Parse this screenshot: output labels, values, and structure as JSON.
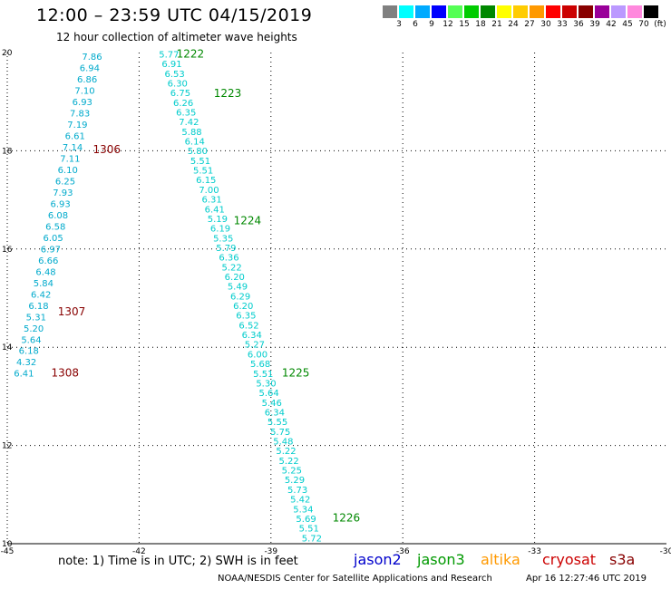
{
  "title": "12:00 – 23:59 UTC 04/15/2019",
  "subtitle": "12 hour collection of altimeter wave heights",
  "colorbar": {
    "labels": [
      "3",
      "6",
      "9",
      "12",
      "15",
      "18",
      "21",
      "24",
      "27",
      "30",
      "33",
      "36",
      "39",
      "42",
      "45",
      "70",
      "(ft)"
    ],
    "colors": [
      "#808080",
      "#00ffff",
      "#00aaff",
      "#0000ff",
      "#55ff55",
      "#00cc00",
      "#008800",
      "#ffff00",
      "#ffcc00",
      "#ff9900",
      "#ff0000",
      "#cc0000",
      "#880000",
      "#990099",
      "#bb99ff",
      "#ff88dd",
      "#000000"
    ]
  },
  "axes": {
    "x_ticks": [
      "-45",
      "-42",
      "-39",
      "-36",
      "-33",
      "-30"
    ],
    "y_ticks": [
      "20",
      "18",
      "16",
      "14",
      "12",
      "10"
    ],
    "lon_range": [
      -45,
      -30
    ],
    "lat_range": [
      10,
      20
    ]
  },
  "passes": [
    {
      "label": "1222",
      "color": "#008800",
      "lon": -41.15,
      "lat": 19.9
    },
    {
      "label": "1223",
      "color": "#008800",
      "lon": -40.3,
      "lat": 19.1
    },
    {
      "label": "1224",
      "color": "#008800",
      "lon": -39.85,
      "lat": 16.5
    },
    {
      "label": "1225",
      "color": "#008800",
      "lon": -38.75,
      "lat": 13.4
    },
    {
      "label": "1226",
      "color": "#008800",
      "lon": -37.6,
      "lat": 10.45
    },
    {
      "label": "1306",
      "color": "#880000",
      "lon": -43.05,
      "lat": 17.95
    },
    {
      "label": "1307",
      "color": "#880000",
      "lon": -43.85,
      "lat": 14.65
    },
    {
      "label": "1308",
      "color": "#880000",
      "lon": -44.0,
      "lat": 13.4
    }
  ],
  "tracks": [
    {
      "name": "track-west",
      "color": "#00aacc",
      "start_lon": -43.3,
      "start_lat": 19.85,
      "end_lon": -44.85,
      "end_lat": 13.4,
      "values": [
        "7.86",
        "6.94",
        "6.86",
        "7.10",
        "6.93",
        "7.83",
        "7.19",
        "6.61",
        "7.14",
        "7.11",
        "6.10",
        "6.25",
        "7.93",
        "6.93",
        "6.08",
        "6.58",
        "6.05",
        "6.97",
        "6.66",
        "6.48",
        "5.84",
        "6.42",
        "6.18",
        "5.31",
        "5.20",
        "5.64",
        "6.18",
        "4.32",
        "6.41"
      ]
    },
    {
      "name": "track-east",
      "color": "#00cccc",
      "start_lon": -41.55,
      "start_lat": 19.9,
      "end_lon": -38.3,
      "end_lat": 10.05,
      "values": [
        "5.77",
        "6.91",
        "6.53",
        "6.30",
        "6.75",
        "6.26",
        "6.35",
        "7.42",
        "5.88",
        "6.14",
        "5.80",
        "5.51",
        "5.51",
        "6.15",
        "7.00",
        "6.31",
        "6.41",
        "5.19",
        "6.19",
        "5.35",
        "5.79",
        "6.36",
        "5.22",
        "6.20",
        "5.49",
        "6.29",
        "6.20",
        "6.35",
        "6.52",
        "6.34",
        "5.27",
        "6.00",
        "5.68",
        "5.51",
        "5.30",
        "5.64",
        "5.46",
        "6.34",
        "5.55",
        "5.75",
        "5.48",
        "5.22",
        "5.22",
        "5.25",
        "5.29",
        "5.73",
        "5.42",
        "5.34",
        "5.69",
        "5.51",
        "5.72"
      ]
    }
  ],
  "note": "note: 1) Time is in UTC; 2) SWH is in feet",
  "satellites": [
    {
      "name": "jason2",
      "color": "#0000cc"
    },
    {
      "name": "jason3",
      "color": "#009900"
    },
    {
      "name": "altika",
      "color": "#ff9900"
    },
    {
      "name": "cryosat",
      "color": "#cc0000"
    },
    {
      "name": "s3a",
      "color": "#880000"
    }
  ],
  "credit": "NOAA/NESDIS Center for Satellite Applications and Research",
  "timestamp": "Apr 16 12:27:46 UTC 2019"
}
